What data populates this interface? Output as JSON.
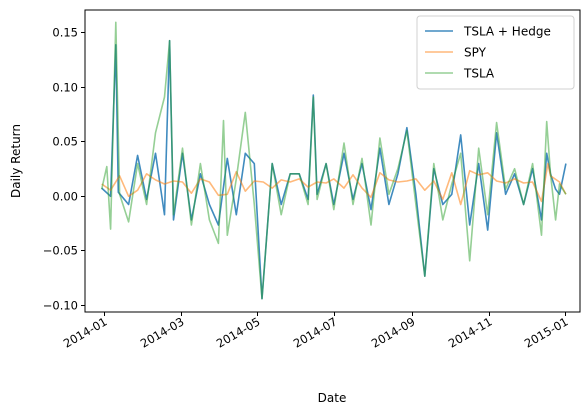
{
  "chart_data": {
    "type": "line",
    "title": "",
    "xlabel": "Date",
    "ylabel": "Daily Return",
    "x_ticks": [
      "2014-01",
      "2014-03",
      "2014-05",
      "2014-07",
      "2014-09",
      "2014-11",
      "2015-01"
    ],
    "y_ticks": [
      "0.15",
      "0.10",
      "0.05",
      "0.00",
      "−0.05",
      "−0.10"
    ],
    "ylim": [
      -0.125,
      0.17
    ],
    "xlim": [
      "2013-12-21",
      "2015-01-11"
    ],
    "grid": false,
    "legend_position": "top-right",
    "series": [
      {
        "name": "TSLA + Hedge",
        "color": "#1f77b4",
        "opacity": 0.85,
        "values": [
          [
            "2014-01-03",
            -0.004
          ],
          [
            "2014-01-10",
            -0.012
          ],
          [
            "2014-01-14",
            0.136
          ],
          [
            "2014-01-16",
            -0.008
          ],
          [
            "2014-01-24",
            -0.02
          ],
          [
            "2014-01-31",
            0.028
          ],
          [
            "2014-02-07",
            -0.015
          ],
          [
            "2014-02-14",
            0.03
          ],
          [
            "2014-02-21",
            -0.03
          ],
          [
            "2014-02-25",
            0.14
          ],
          [
            "2014-02-28",
            -0.035
          ],
          [
            "2014-03-07",
            0.03
          ],
          [
            "2014-03-14",
            -0.035
          ],
          [
            "2014-03-21",
            0.01
          ],
          [
            "2014-03-28",
            -0.02
          ],
          [
            "2014-04-04",
            -0.04
          ],
          [
            "2014-04-11",
            0.025
          ],
          [
            "2014-04-18",
            -0.03
          ],
          [
            "2014-04-25",
            0.03
          ],
          [
            "2014-05-02",
            0.02
          ],
          [
            "2014-05-08",
            -0.112
          ],
          [
            "2014-05-16",
            0.02
          ],
          [
            "2014-05-23",
            -0.02
          ],
          [
            "2014-05-30",
            0.01
          ],
          [
            "2014-06-06",
            0.01
          ],
          [
            "2014-06-13",
            -0.015
          ],
          [
            "2014-06-17",
            0.087
          ],
          [
            "2014-06-20",
            -0.01
          ],
          [
            "2014-06-27",
            0.02
          ],
          [
            "2014-07-03",
            -0.02
          ],
          [
            "2014-07-11",
            0.03
          ],
          [
            "2014-07-18",
            -0.015
          ],
          [
            "2014-07-25",
            0.02
          ],
          [
            "2014-08-01",
            -0.025
          ],
          [
            "2014-08-08",
            0.035
          ],
          [
            "2014-08-15",
            -0.02
          ],
          [
            "2014-08-22",
            0.01
          ],
          [
            "2014-08-29",
            0.055
          ],
          [
            "2014-09-05",
            -0.01
          ],
          [
            "2014-09-12",
            -0.09
          ],
          [
            "2014-09-19",
            0.015
          ],
          [
            "2014-09-26",
            -0.02
          ],
          [
            "2014-10-03",
            -0.01
          ],
          [
            "2014-10-10",
            0.048
          ],
          [
            "2014-10-17",
            -0.04
          ],
          [
            "2014-10-24",
            0.02
          ],
          [
            "2014-10-31",
            -0.045
          ],
          [
            "2014-11-07",
            0.05
          ],
          [
            "2014-11-14",
            -0.01
          ],
          [
            "2014-11-21",
            0.01
          ],
          [
            "2014-11-28",
            -0.02
          ],
          [
            "2014-12-05",
            0.015
          ],
          [
            "2014-12-12",
            -0.035
          ],
          [
            "2014-12-16",
            0.03
          ],
          [
            "2014-12-19",
            0.01
          ],
          [
            "2014-12-23",
            -0.005
          ],
          [
            "2014-12-26",
            -0.01
          ],
          [
            "2014-12-31",
            0.02
          ]
        ]
      },
      {
        "name": "SPY",
        "color": "#ff7f0e",
        "opacity": 0.55,
        "values": [
          [
            "2014-01-03",
            0.0
          ],
          [
            "2014-01-10",
            -0.006
          ],
          [
            "2014-01-17",
            0.008
          ],
          [
            "2014-01-24",
            -0.012
          ],
          [
            "2014-01-31",
            -0.006
          ],
          [
            "2014-02-07",
            0.01
          ],
          [
            "2014-02-14",
            0.004
          ],
          [
            "2014-02-21",
            0.0
          ],
          [
            "2014-02-28",
            0.003
          ],
          [
            "2014-03-07",
            0.002
          ],
          [
            "2014-03-14",
            -0.009
          ],
          [
            "2014-03-21",
            0.005
          ],
          [
            "2014-03-28",
            0.002
          ],
          [
            "2014-04-04",
            -0.011
          ],
          [
            "2014-04-11",
            -0.01
          ],
          [
            "2014-04-18",
            0.012
          ],
          [
            "2014-04-25",
            -0.007
          ],
          [
            "2014-05-02",
            0.003
          ],
          [
            "2014-05-09",
            0.002
          ],
          [
            "2014-05-16",
            -0.004
          ],
          [
            "2014-05-23",
            0.004
          ],
          [
            "2014-05-30",
            0.002
          ],
          [
            "2014-06-06",
            0.005
          ],
          [
            "2014-06-13",
            -0.003
          ],
          [
            "2014-06-20",
            0.002
          ],
          [
            "2014-06-27",
            0.001
          ],
          [
            "2014-07-03",
            0.005
          ],
          [
            "2014-07-11",
            -0.004
          ],
          [
            "2014-07-18",
            0.009
          ],
          [
            "2014-07-25",
            -0.004
          ],
          [
            "2014-08-01",
            -0.013
          ],
          [
            "2014-08-08",
            0.011
          ],
          [
            "2014-08-15",
            0.004
          ],
          [
            "2014-08-22",
            0.002
          ],
          [
            "2014-08-29",
            0.003
          ],
          [
            "2014-09-05",
            0.005
          ],
          [
            "2014-09-12",
            -0.006
          ],
          [
            "2014-09-19",
            0.003
          ],
          [
            "2014-09-26",
            -0.015
          ],
          [
            "2014-10-03",
            0.011
          ],
          [
            "2014-10-10",
            -0.02
          ],
          [
            "2014-10-17",
            0.013
          ],
          [
            "2014-10-24",
            0.009
          ],
          [
            "2014-10-31",
            0.011
          ],
          [
            "2014-11-07",
            0.003
          ],
          [
            "2014-11-14",
            0.001
          ],
          [
            "2014-11-21",
            0.005
          ],
          [
            "2014-11-28",
            0.001
          ],
          [
            "2014-12-05",
            0.002
          ],
          [
            "2014-12-12",
            -0.017
          ],
          [
            "2014-12-17",
            0.02
          ],
          [
            "2014-12-19",
            0.008
          ],
          [
            "2014-12-26",
            0.002
          ],
          [
            "2014-12-31",
            -0.01
          ]
        ]
      },
      {
        "name": "TSLA",
        "color": "#2ca02c",
        "opacity": 0.5,
        "values": [
          [
            "2014-01-03",
            -0.005
          ],
          [
            "2014-01-07",
            0.017
          ],
          [
            "2014-01-10",
            -0.044
          ],
          [
            "2014-01-14",
            0.158
          ],
          [
            "2014-01-17",
            -0.01
          ],
          [
            "2014-01-24",
            -0.037
          ],
          [
            "2014-01-31",
            0.02
          ],
          [
            "2014-02-07",
            -0.02
          ],
          [
            "2014-02-14",
            0.05
          ],
          [
            "2014-02-21",
            0.085
          ],
          [
            "2014-02-25",
            0.14
          ],
          [
            "2014-02-28",
            -0.03
          ],
          [
            "2014-03-07",
            0.035
          ],
          [
            "2014-03-14",
            -0.04
          ],
          [
            "2014-03-21",
            0.02
          ],
          [
            "2014-03-28",
            -0.035
          ],
          [
            "2014-04-04",
            -0.058
          ],
          [
            "2014-04-08",
            0.062
          ],
          [
            "2014-04-11",
            -0.05
          ],
          [
            "2014-04-18",
            0.005
          ],
          [
            "2014-04-25",
            0.07
          ],
          [
            "2014-05-02",
            -0.02
          ],
          [
            "2014-05-08",
            -0.112
          ],
          [
            "2014-05-16",
            0.02
          ],
          [
            "2014-05-23",
            -0.03
          ],
          [
            "2014-05-30",
            0.01
          ],
          [
            "2014-06-06",
            0.01
          ],
          [
            "2014-06-13",
            -0.02
          ],
          [
            "2014-06-17",
            0.085
          ],
          [
            "2014-06-20",
            -0.015
          ],
          [
            "2014-06-27",
            0.02
          ],
          [
            "2014-07-03",
            -0.025
          ],
          [
            "2014-07-11",
            0.04
          ],
          [
            "2014-07-18",
            -0.02
          ],
          [
            "2014-07-25",
            0.025
          ],
          [
            "2014-08-01",
            -0.04
          ],
          [
            "2014-08-08",
            0.045
          ],
          [
            "2014-08-15",
            -0.01
          ],
          [
            "2014-08-22",
            0.015
          ],
          [
            "2014-08-29",
            0.052
          ],
          [
            "2014-09-05",
            -0.02
          ],
          [
            "2014-09-12",
            -0.09
          ],
          [
            "2014-09-19",
            0.02
          ],
          [
            "2014-09-26",
            -0.035
          ],
          [
            "2014-10-03",
            0.0
          ],
          [
            "2014-10-10",
            0.03
          ],
          [
            "2014-10-17",
            -0.075
          ],
          [
            "2014-10-24",
            0.035
          ],
          [
            "2014-10-31",
            -0.03
          ],
          [
            "2014-11-07",
            0.06
          ],
          [
            "2014-11-14",
            -0.005
          ],
          [
            "2014-11-21",
            0.015
          ],
          [
            "2014-11-28",
            -0.02
          ],
          [
            "2014-12-05",
            0.02
          ],
          [
            "2014-12-12",
            -0.05
          ],
          [
            "2014-12-16",
            0.061
          ],
          [
            "2014-12-19",
            0.01
          ],
          [
            "2014-12-23",
            -0.035
          ],
          [
            "2014-12-26",
            0.0
          ],
          [
            "2014-12-31",
            -0.01
          ]
        ]
      }
    ]
  }
}
